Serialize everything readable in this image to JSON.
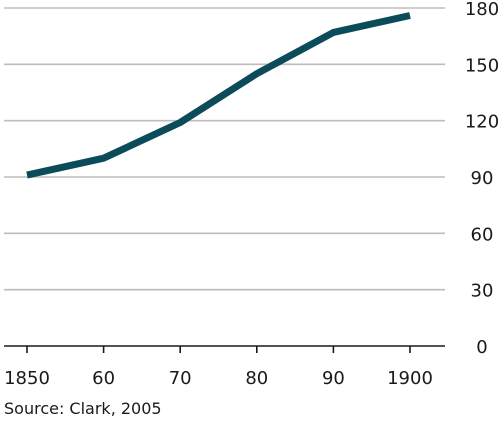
{
  "chart_data": {
    "type": "line",
    "title": "",
    "xlabel": "",
    "ylabel": "",
    "x": [
      1850,
      1860,
      1870,
      1880,
      1890,
      1900
    ],
    "x_tick_labels": [
      "1850",
      "60",
      "70",
      "80",
      "90",
      "1900"
    ],
    "series": [
      {
        "values": [
          91,
          100,
          119,
          145,
          167,
          176
        ]
      }
    ],
    "y_ticks": [
      0,
      30,
      60,
      90,
      120,
      150,
      180
    ],
    "ylim": [
      0,
      180
    ],
    "xlim": [
      1850,
      1900
    ],
    "grid": true,
    "y_axis_position": "right",
    "line_color": "#0b4b5a",
    "grid_color": "#bdbdbd",
    "axis_color": "#1a1a1a",
    "source": "Source: Clark, 2005"
  }
}
